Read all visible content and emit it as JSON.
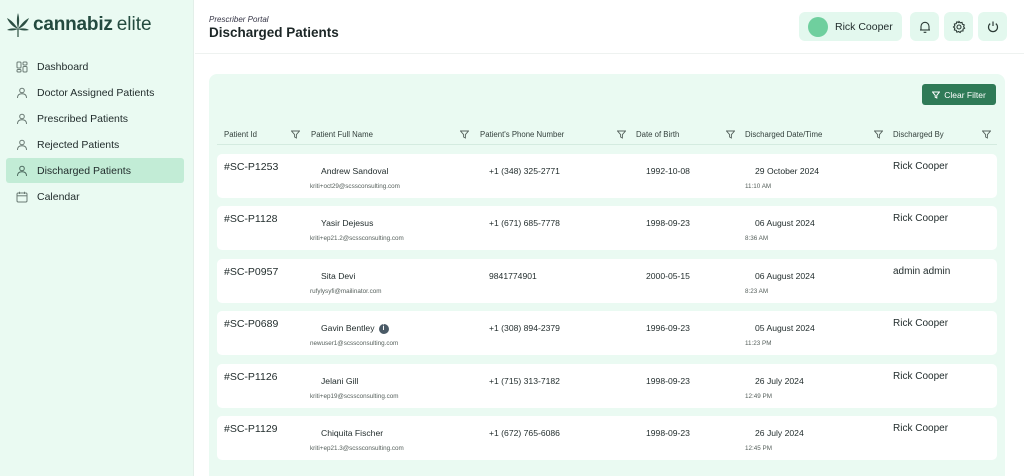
{
  "brand": {
    "name_bold": "cannabiz",
    "name_light": "elite"
  },
  "sidebar": {
    "items": [
      {
        "label": "Dashboard",
        "icon": "dashboard-icon"
      },
      {
        "label": "Doctor Assigned Patients",
        "icon": "user-icon"
      },
      {
        "label": "Prescribed Patients",
        "icon": "user-icon"
      },
      {
        "label": "Rejected Patients",
        "icon": "user-icon"
      },
      {
        "label": "Discharged Patients",
        "icon": "user-icon",
        "active": true
      },
      {
        "label": "Calendar",
        "icon": "calendar-icon"
      }
    ]
  },
  "header": {
    "subtitle": "Prescriber Portal",
    "title": "Discharged Patients",
    "user_name": "Rick Cooper",
    "icons": [
      "bell-icon",
      "gear-icon",
      "power-icon"
    ]
  },
  "toolbar": {
    "clear_filter_label": "Clear Filter"
  },
  "table": {
    "columns": [
      "Patient Id",
      "Patient Full Name",
      "Patient's Phone Number",
      "Date of Birth",
      "Discharged Date/Time",
      "Discharged By"
    ],
    "rows": [
      {
        "id": "#SC-P1253",
        "name": "Andrew Sandoval",
        "email": "kriti+oct29@scssconsulting.com",
        "phone": "+1 (348) 325-2771",
        "dob": "1992-10-08",
        "date": "29 October 2024",
        "time": "11:10 AM",
        "by": "Rick Cooper"
      },
      {
        "id": "#SC-P1128",
        "name": "Yasir Dejesus",
        "email": "kriti+ep21.2@scssconsulting.com",
        "phone": "+1 (671) 685-7778",
        "dob": "1998-09-23",
        "date": "06 August 2024",
        "time": "8:36 AM",
        "by": "Rick Cooper"
      },
      {
        "id": "#SC-P0957",
        "name": "Sita Devi",
        "email": "rufylysyfi@mailinator.com",
        "phone": "9841774901",
        "dob": "2000-05-15",
        "date": "06 August 2024",
        "time": "8:23 AM",
        "by": "admin admin"
      },
      {
        "id": "#SC-P0689",
        "name": "Gavin Bentley",
        "email": "newuser1@scssconsulting.com",
        "phone": "+1 (308) 894-2379",
        "dob": "1996-09-23",
        "date": "05 August 2024",
        "time": "11:23 PM",
        "by": "Rick Cooper",
        "info": true
      },
      {
        "id": "#SC-P1126",
        "name": "Jelani Gill",
        "email": "kriti+ep19@scssconsulting.com",
        "phone": "+1 (715) 313-7182",
        "dob": "1998-09-23",
        "date": "26 July 2024",
        "time": "12:49 PM",
        "by": "Rick Cooper"
      },
      {
        "id": "#SC-P1129",
        "name": "Chiquita Fischer",
        "email": "kriti+ep21.3@scssconsulting.com",
        "phone": "+1 (672) 765-6086",
        "dob": "1998-09-23",
        "date": "26 July 2024",
        "time": "12:45 PM",
        "by": "Rick Cooper"
      }
    ]
  },
  "colors": {
    "accent": "#2f7a57",
    "sidebar_bg": "#eafaf2",
    "active_item": "#c2ecd6",
    "avatar": "#6fcf9e"
  }
}
